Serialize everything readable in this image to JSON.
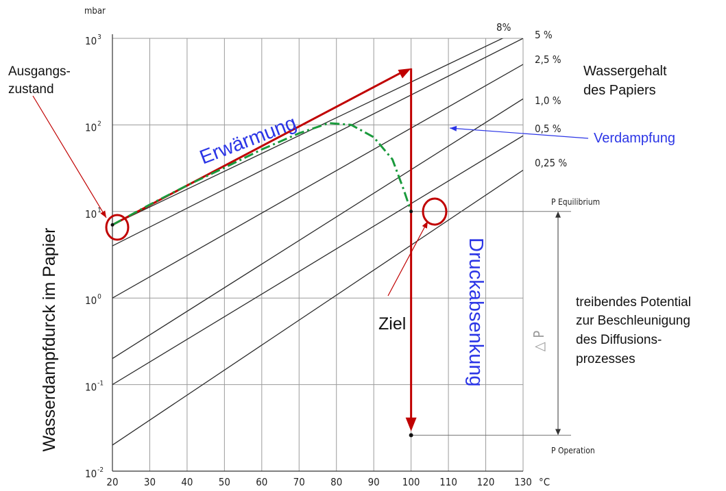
{
  "chart_data": {
    "type": "line",
    "title": "",
    "ylabel": "Wasserdampfdurck im Papier",
    "y_unit": "mbar",
    "x_unit": "°C",
    "xlim": [
      20,
      130
    ],
    "ylim": [
      0.01,
      1000
    ],
    "yscale": "log",
    "grid": true,
    "x_ticks": [
      "20",
      "30",
      "40",
      "50",
      "60",
      "70",
      "80",
      "90",
      "100",
      "110",
      "120",
      "130"
    ],
    "y_ticks": [
      {
        "value": 0.01,
        "base": "10",
        "exp": "-2"
      },
      {
        "value": 0.1,
        "base": "10",
        "exp": "-1"
      },
      {
        "value": 1,
        "base": "10",
        "exp": "0"
      },
      {
        "value": 10,
        "base": "10",
        "exp": "1"
      },
      {
        "value": 100,
        "base": "10",
        "exp": "2"
      },
      {
        "value": 1000,
        "base": "10",
        "exp": "3"
      }
    ],
    "series": [
      {
        "name": "8%",
        "x": [
          20,
          130
        ],
        "y": [
          7.0,
          1300
        ]
      },
      {
        "name": "5 %",
        "x": [
          20,
          130
        ],
        "y": [
          4.0,
          1000
        ]
      },
      {
        "name": "2,5 %",
        "x": [
          20,
          130
        ],
        "y": [
          1.0,
          500
        ]
      },
      {
        "name": "1,0 %",
        "x": [
          20,
          130
        ],
        "y": [
          0.2,
          200
        ]
      },
      {
        "name": "0,5 %",
        "x": [
          20,
          130
        ],
        "y": [
          0.1,
          75
        ]
      },
      {
        "name": "0,25 %",
        "x": [
          20,
          130
        ],
        "y": [
          0.02,
          30
        ]
      }
    ],
    "process_path": {
      "x": [
        20,
        30,
        40,
        50,
        60,
        70,
        78,
        84,
        90,
        95,
        98,
        100
      ],
      "y": [
        7.0,
        12,
        20,
        32,
        52,
        80,
        105,
        100,
        72,
        40,
        18,
        10
      ]
    },
    "heating_arrow": {
      "from": [
        20,
        7.0
      ],
      "to": [
        100,
        450
      ]
    },
    "pressure_drop_arrow": {
      "from": [
        100,
        450
      ],
      "to": [
        100,
        0.03
      ]
    },
    "delta_p_range": [
      10,
      0.026
    ],
    "labels": {
      "p_equilibrium": "P Equilibrium",
      "p_operation": "P Operation",
      "delta_p": "△ P"
    },
    "annotations": {
      "ausgangszustand_1": "Ausgangs-",
      "ausgangszustand_2": "zustand",
      "erwaermung": "Erwärmung",
      "wassergehalt_1": "Wassergehalt",
      "wassergehalt_2": "des Papiers",
      "verdampfung": "Verdampfung",
      "ziel": "Ziel",
      "druckabsenkung": "Druckabsenkung",
      "potential": [
        "treibendes Potential",
        "zur Beschleunigung",
        "des Diffusions-",
        "prozesses"
      ]
    },
    "colors": {
      "grid": "#9a9a9a",
      "line": "#2a2a2a",
      "arrow": "#c00000",
      "path": "#1a9a3c",
      "blue_text": "#2b35e6",
      "circle": "#c00000"
    }
  }
}
